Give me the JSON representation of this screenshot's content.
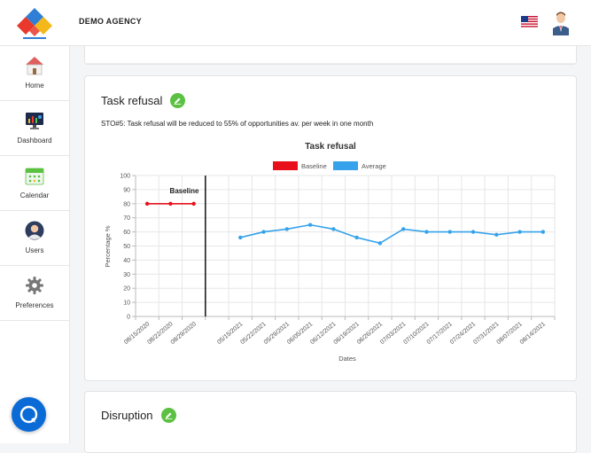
{
  "header": {
    "agency_name": "DEMO AGENCY",
    "flag_icon": "us-flag-icon",
    "avatar_icon": "user-avatar-icon"
  },
  "sidebar": {
    "items": [
      {
        "label": "Home",
        "icon": "home-icon"
      },
      {
        "label": "Dashboard",
        "icon": "dashboard-icon"
      },
      {
        "label": "Calendar",
        "icon": "calendar-icon"
      },
      {
        "label": "Users",
        "icon": "users-icon"
      },
      {
        "label": "Preferences",
        "icon": "gear-icon"
      }
    ]
  },
  "chat": {
    "icon": "chat-bubble-icon"
  },
  "cards": {
    "task_refusal": {
      "title": "Task refusal",
      "sto": "STO#5: Task refusal will be reduced to 55% of opportunities av. per week in one month"
    },
    "disruption": {
      "title": "Disruption"
    }
  },
  "colors": {
    "baseline": "#e8101a",
    "average": "#36a2eb",
    "edit_badge": "#5cc142",
    "chat": "#0a6bd6"
  },
  "chart_data": {
    "type": "line",
    "title": "Task refusal",
    "xlabel": "Dates",
    "ylabel": "Percentage %",
    "ylim": [
      0,
      100
    ],
    "yticks": [
      0,
      10,
      20,
      30,
      40,
      50,
      60,
      70,
      80,
      90,
      100
    ],
    "grid": true,
    "legend_position": "top",
    "annotation": "Baseline",
    "phase_change_after": "08/29/2020",
    "categories": [
      "08/15/2020",
      "08/22/2020",
      "08/29/2020",
      "",
      "05/15/2021",
      "05/22/2021",
      "05/29/2021",
      "06/05/2021",
      "06/12/2021",
      "06/19/2021",
      "06/26/2021",
      "07/03/2021",
      "07/10/2021",
      "07/17/2021",
      "07/24/2021",
      "07/31/2021",
      "08/07/2021",
      "08/14/2021"
    ],
    "series": [
      {
        "name": "Baseline",
        "color": "#e8101a",
        "values": [
          80,
          80,
          80,
          null,
          null,
          null,
          null,
          null,
          null,
          null,
          null,
          null,
          null,
          null,
          null,
          null,
          null,
          null
        ]
      },
      {
        "name": "Average",
        "color": "#36a2eb",
        "values": [
          null,
          null,
          null,
          null,
          56,
          60,
          62,
          65,
          62,
          56,
          52,
          62,
          60,
          60,
          60,
          58,
          60,
          60
        ]
      }
    ]
  }
}
